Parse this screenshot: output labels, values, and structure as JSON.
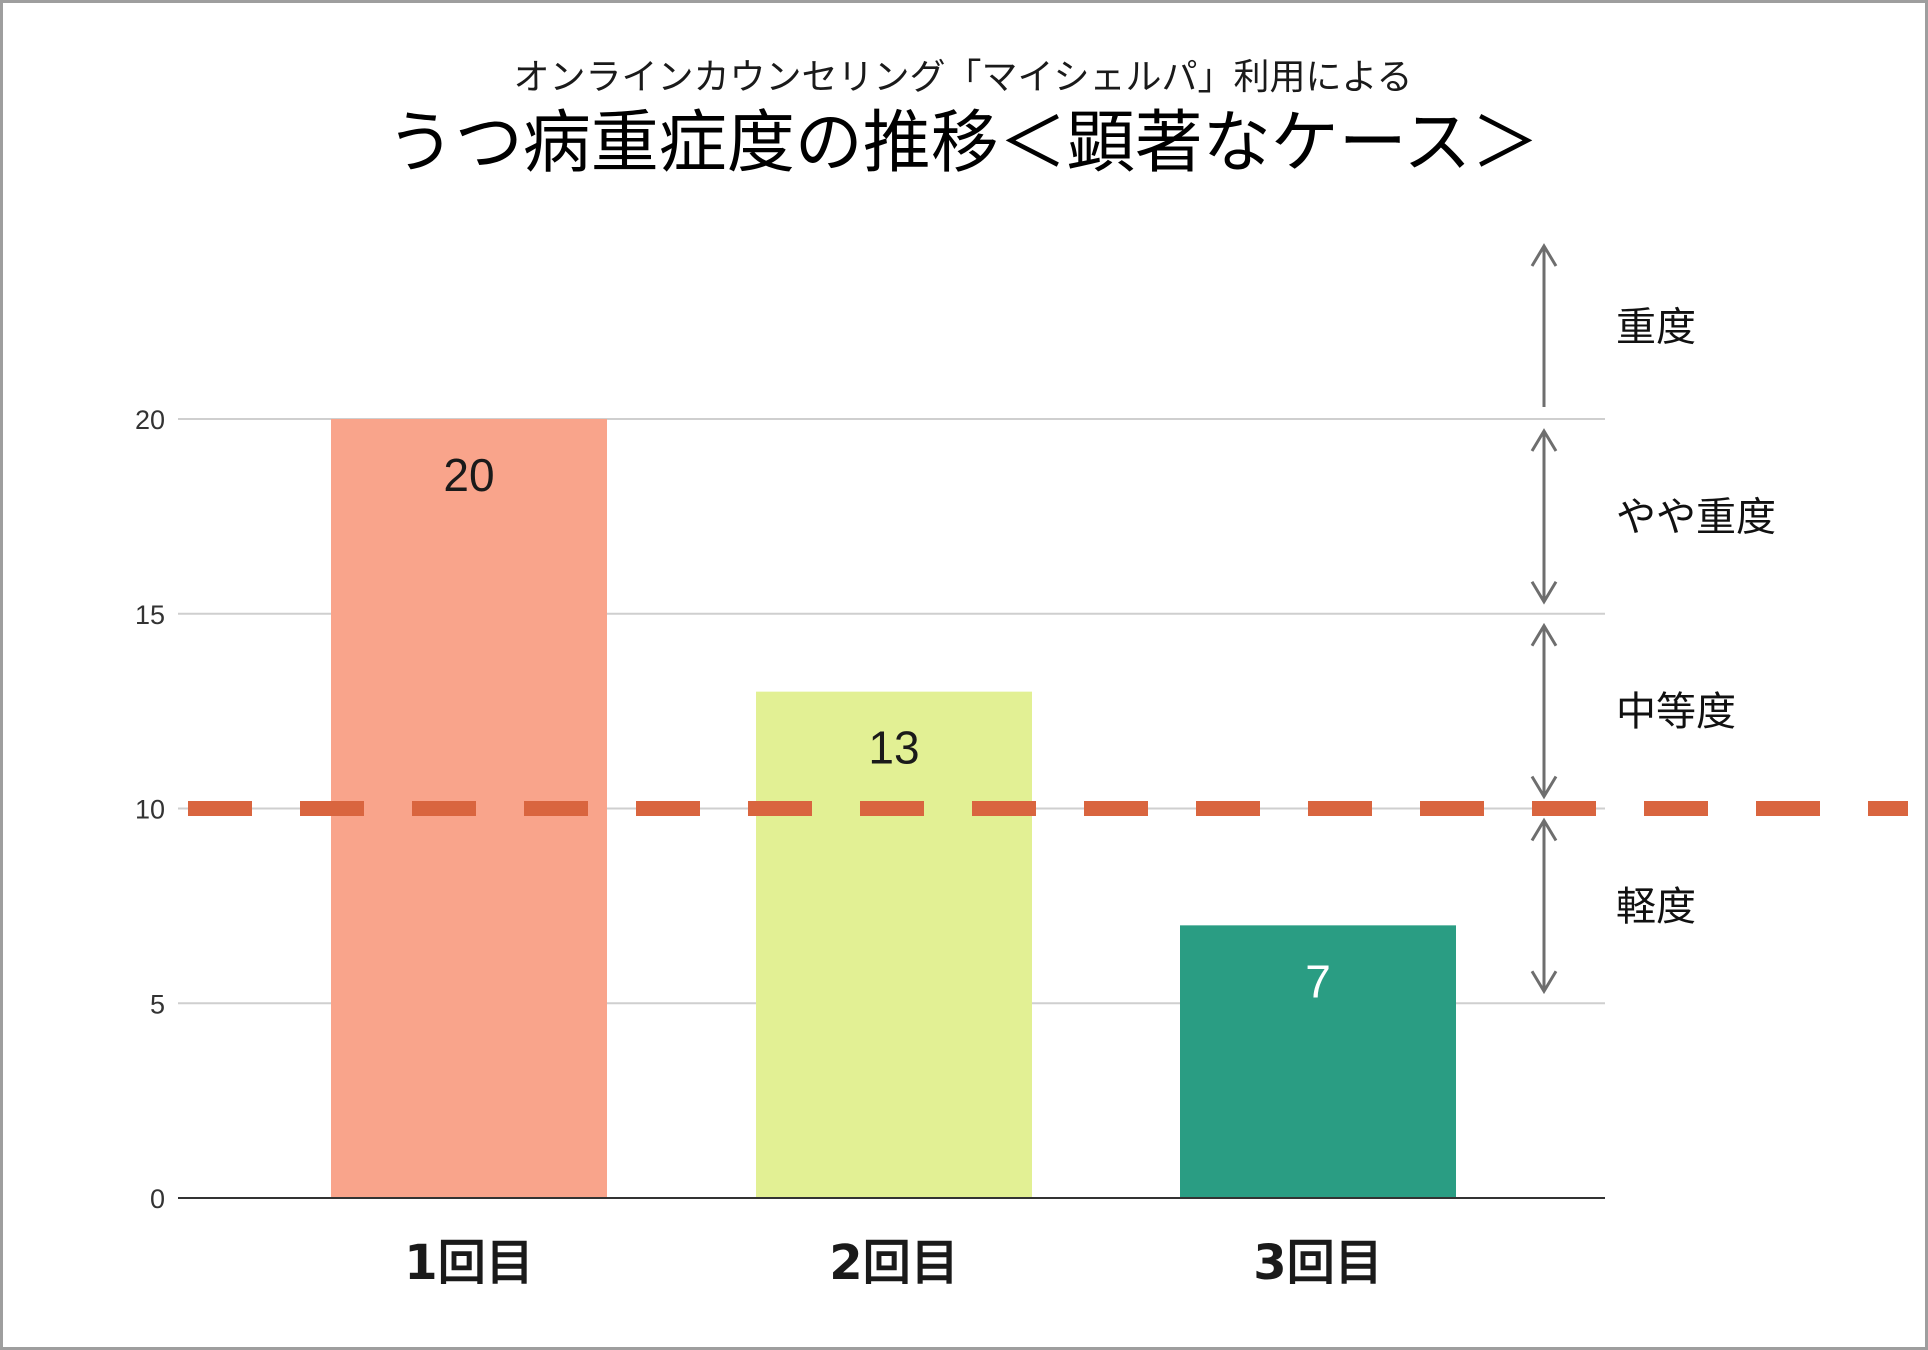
{
  "chart_data": {
    "type": "bar",
    "subtitle": "オンラインカウンセリング「マイシェルパ」利用による",
    "title": "うつ病重症度の推移＜顕著なケース＞",
    "categories": [
      "1回目",
      "2回目",
      "3回目"
    ],
    "values": [
      20,
      13,
      7
    ],
    "ylim": [
      0,
      20
    ],
    "yticks": [
      0,
      5,
      10,
      15,
      20
    ],
    "ytick_labels": [
      "0",
      "5",
      "10",
      "15",
      "20"
    ],
    "grid": true,
    "threshold": 10,
    "bar_colors": [
      "#f9a48b",
      "#e2f094",
      "#2a9d83"
    ],
    "label_colors": [
      "#1a1a1a",
      "#1a1a1a",
      "#ffffff"
    ],
    "threshold_color": "#d9653f",
    "severity_bands": [
      {
        "label": "重度",
        "from": 20,
        "to": 24.5
      },
      {
        "label": "やや重度",
        "from": 15,
        "to": 20
      },
      {
        "label": "中等度",
        "from": 10,
        "to": 15
      },
      {
        "label": "軽度",
        "from": 5,
        "to": 10
      }
    ]
  }
}
